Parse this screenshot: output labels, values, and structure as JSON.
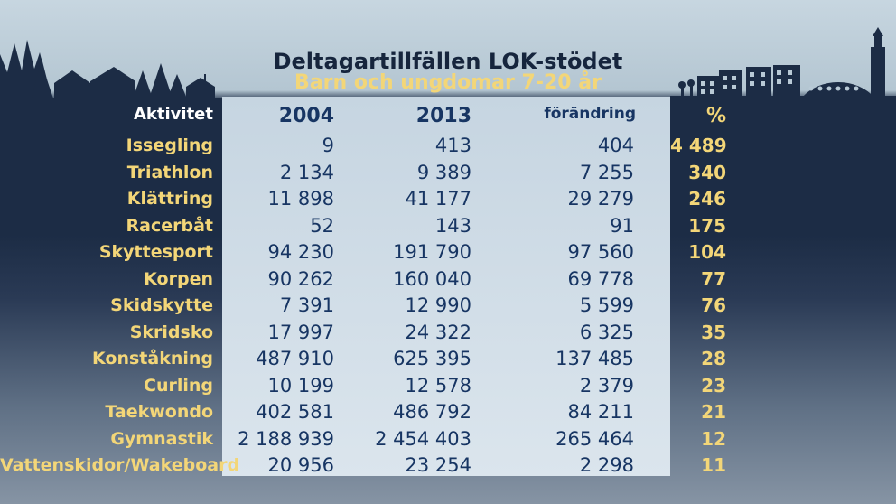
{
  "chart_data": {
    "type": "table",
    "title": "Deltagartillfällen LOK-stödet",
    "subtitle": "Barn och ungdomar 7-20 år",
    "columns": [
      "Aktivitet",
      "2004",
      "2013",
      "förändring",
      "%"
    ],
    "rows": [
      [
        "Issegling",
        "9",
        "413",
        "404",
        "4 489"
      ],
      [
        "Triathlon",
        "2 134",
        "9 389",
        "7 255",
        "340"
      ],
      [
        "Klättring",
        "11 898",
        "41 177",
        "29 279",
        "246"
      ],
      [
        "Racerbåt",
        "52",
        "143",
        "91",
        "175"
      ],
      [
        "Skyttesport",
        "94 230",
        "191 790",
        "97 560",
        "104"
      ],
      [
        "Korpen",
        "90 262",
        "160 040",
        "69 778",
        "77"
      ],
      [
        "Skidskytte",
        "7 391",
        "12 990",
        "5 599",
        "76"
      ],
      [
        "Skridsko",
        "17 997",
        "24 322",
        "6 325",
        "35"
      ],
      [
        "Konståkning",
        "487 910",
        "625 395",
        "137 485",
        "28"
      ],
      [
        "Curling",
        "10 199",
        "12 578",
        "2 379",
        "23"
      ],
      [
        "Taekwondo",
        "402 581",
        "486 792",
        "84 211",
        "21"
      ],
      [
        "Gymnastik",
        "2 188 939",
        "2 454 403",
        "265 464",
        "12"
      ],
      [
        "Vattenskidor/Wakeboard",
        "20 956",
        "23 254",
        "2 298",
        "11"
      ]
    ]
  },
  "colors": {
    "title": "#16253d",
    "subtitle": "#f3d678",
    "label": "#f3d678",
    "numbers": "#173563",
    "background_dark": "#1c2c45",
    "panel": "#d2dee8"
  },
  "decoration": "city-skyline-silhouette"
}
